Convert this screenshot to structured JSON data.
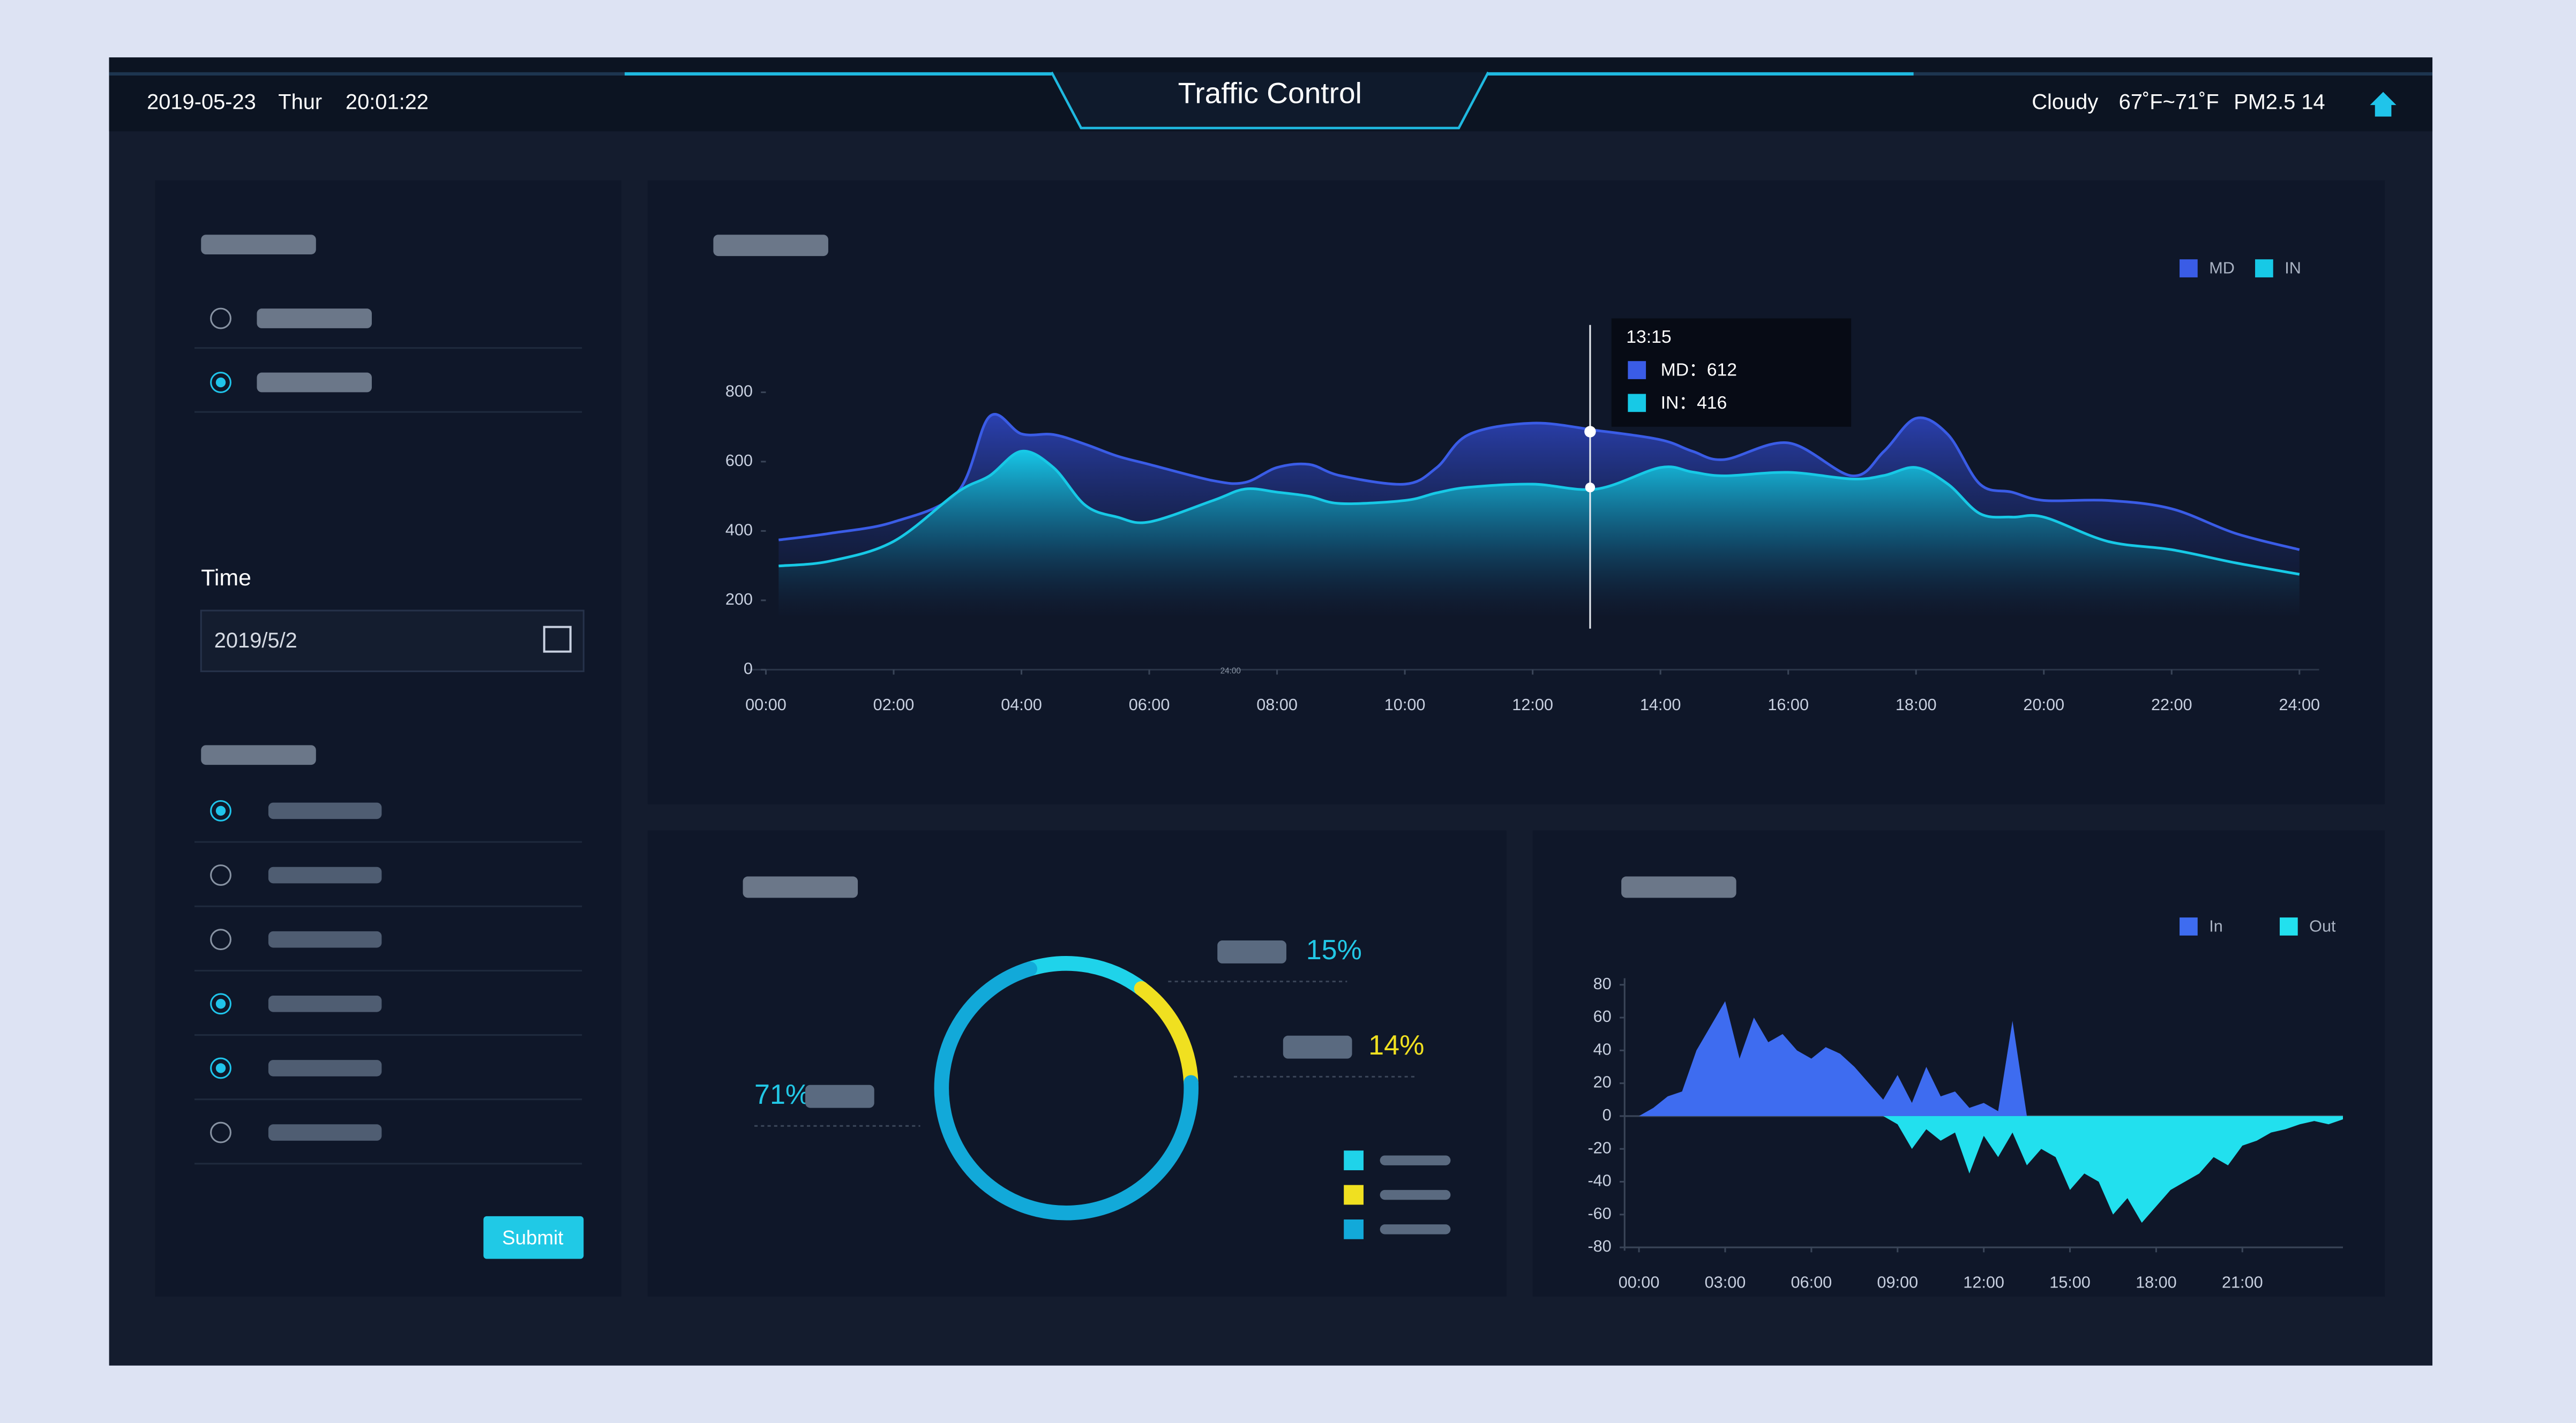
{
  "header": {
    "date": "2019-05-23",
    "day": "Thur",
    "time": "20:01:22",
    "title": "Traffic Control",
    "weather": "Cloudy",
    "temperature": "67˚F~71˚F",
    "pm25": "PM2.5 14"
  },
  "form": {
    "time_label": "Time",
    "date_value": "2019/5/2",
    "submit": "Submit"
  },
  "chart_data": [
    {
      "type": "area",
      "legend": "top-right",
      "grid": false,
      "x": [
        0.2,
        1,
        2,
        3,
        3.5,
        4,
        4.5,
        5,
        5.5,
        6,
        7,
        7.5,
        8,
        8.5,
        9,
        10,
        10.5,
        11,
        12,
        13,
        14,
        14.5,
        15,
        16,
        17,
        17.5,
        18,
        18.5,
        19,
        19.5,
        20,
        21,
        22,
        23,
        24
      ],
      "series": [
        {
          "name": "MD",
          "color": "#3a5ce6",
          "values": [
            374,
            393,
            426,
            512,
            730,
            680,
            678,
            650,
            616,
            592,
            545,
            540,
            583,
            592,
            559,
            535,
            583,
            678,
            711,
            690,
            663,
            630,
            606,
            654,
            559,
            630,
            725,
            678,
            535,
            512,
            488,
            488,
            464,
            393,
            346
          ]
        },
        {
          "name": "IN",
          "color": "#17c9e6",
          "values": [
            299,
            313,
            370,
            512,
            559,
            630,
            583,
            474,
            440,
            426,
            488,
            521,
            512,
            500,
            479,
            488,
            510,
            526,
            535,
            521,
            583,
            570,
            559,
            569,
            550,
            560,
            583,
            535,
            450,
            440,
            440,
            370,
            346,
            308,
            275
          ]
        }
      ],
      "xlim": [
        0,
        24
      ],
      "ylim": [
        0,
        800
      ],
      "yticks": [
        0,
        200,
        400,
        600,
        800
      ],
      "xticks": [
        {
          "value": 0,
          "label": "00:00"
        },
        {
          "value": 2,
          "label": "02:00"
        },
        {
          "value": 4,
          "label": "04:00"
        },
        {
          "value": 6,
          "label": "06:00"
        },
        {
          "value": 8,
          "label": "08:00"
        },
        {
          "value": 10,
          "label": "10:00"
        },
        {
          "value": 12,
          "label": "12:00"
        },
        {
          "value": 14,
          "label": "14:00"
        },
        {
          "value": 16,
          "label": "16:00"
        },
        {
          "value": 18,
          "label": "18:00"
        },
        {
          "value": 20,
          "label": "20:00"
        },
        {
          "value": 22,
          "label": "22:00"
        },
        {
          "value": 24,
          "label": "24:00"
        }
      ],
      "tooltip": {
        "title": "13:15",
        "lines": [
          "MD：612",
          "IN：416"
        ]
      },
      "annotation": "24:00"
    },
    {
      "type": "donut",
      "values": [
        15,
        14,
        71
      ],
      "value_labels": [
        "15%",
        "14%",
        "71%"
      ],
      "colors": [
        "#1fd3ea",
        "#f0e020",
        "#12a9d9"
      ]
    },
    {
      "type": "signed-area",
      "legend": "top-right",
      "x": [
        0,
        0.5,
        1,
        1.5,
        2,
        2.5,
        3,
        3.5,
        4,
        4.5,
        5,
        5.5,
        6,
        6.5,
        7,
        7.5,
        8,
        8.5,
        9,
        9.5,
        10,
        10.5,
        11,
        11.5,
        12,
        12.5,
        13,
        13.5,
        14,
        14.5,
        15,
        15.5,
        16,
        16.5,
        17,
        17.5,
        18,
        18.5,
        19,
        19.5,
        20,
        20.5,
        21,
        21.5,
        22,
        22.5,
        23,
        23.5,
        24,
        24.5
      ],
      "series": [
        {
          "name": "In",
          "color": "#3e6cf0",
          "values": [
            0,
            5,
            12,
            15,
            40,
            55,
            70,
            35,
            60,
            45,
            50,
            40,
            35,
            42,
            38,
            30,
            20,
            10,
            25,
            8,
            30,
            12,
            15,
            5,
            8,
            3,
            58,
            0,
            0,
            0,
            0,
            0,
            0,
            0,
            0,
            0,
            0,
            0,
            0,
            0,
            0,
            0,
            0,
            0,
            0,
            0,
            0,
            0,
            0,
            0
          ]
        },
        {
          "name": "Out",
          "color": "#22e0ee",
          "values": [
            0,
            0,
            0,
            0,
            0,
            0,
            0,
            0,
            0,
            0,
            0,
            0,
            0,
            0,
            0,
            0,
            0,
            0,
            -5,
            -20,
            -8,
            -15,
            -10,
            -35,
            -12,
            -25,
            -10,
            -30,
            -20,
            -25,
            -45,
            -35,
            -40,
            -60,
            -50,
            -65,
            -55,
            -45,
            -40,
            -35,
            -25,
            -30,
            -18,
            -15,
            -10,
            -8,
            -5,
            -3,
            -5,
            -2
          ]
        }
      ],
      "xlim": [
        -0.5,
        24.5
      ],
      "ylim": [
        -80,
        80
      ],
      "yticks": [
        -80,
        -60,
        -40,
        -20,
        0,
        20,
        40,
        60,
        80
      ],
      "xticks": [
        {
          "value": 0,
          "label": "00:00"
        },
        {
          "value": 3,
          "label": "03:00"
        },
        {
          "value": 6,
          "label": "06:00"
        },
        {
          "value": 9,
          "label": "09:00"
        },
        {
          "value": 12,
          "label": "12:00"
        },
        {
          "value": 15,
          "label": "15:00"
        },
        {
          "value": 18,
          "label": "18:00"
        },
        {
          "value": 21,
          "label": "21:00"
        }
      ]
    }
  ]
}
